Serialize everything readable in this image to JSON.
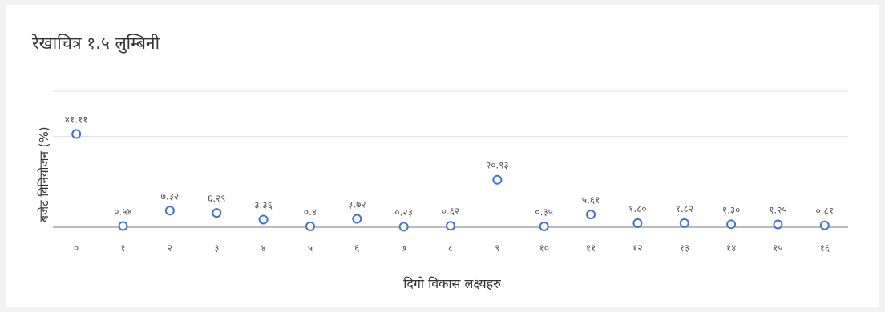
{
  "chart_data": {
    "type": "scatter",
    "title": "रेखाचित्र १.५ लुम्बिनी",
    "xlabel": "दिगो विकास लक्ष्यहरु",
    "ylabel": "बजेट विनियोजन (%)",
    "categories": [
      "०",
      "१",
      "२",
      "३",
      "४",
      "५",
      "६",
      "७",
      "८",
      "९",
      "१०",
      "११",
      "१२",
      "१३",
      "१४",
      "१५",
      "१६"
    ],
    "values": [
      41.11,
      0.54,
      7.32,
      6.29,
      3.36,
      0.4,
      3.72,
      0.23,
      0.62,
      20.93,
      0.35,
      5.61,
      1.8,
      1.82,
      1.3,
      1.25,
      0.81
    ],
    "data_labels": [
      "४१.११",
      "०.५४",
      "७.३२",
      "६.२९",
      "३.३६",
      "०.४",
      "३.७२",
      "०.२३",
      "०.६२",
      "२०.९३",
      "०.३५",
      "५.६१",
      "१.८०",
      "१.८२",
      "१.३०",
      "१.२५",
      "०.८१"
    ],
    "ylim": [
      0,
      60
    ],
    "grid": true,
    "marker": "open-circle",
    "colors": {
      "marker": "#4472c4",
      "axis": "#a6a6a6",
      "grid": "#e0e0e0"
    }
  }
}
